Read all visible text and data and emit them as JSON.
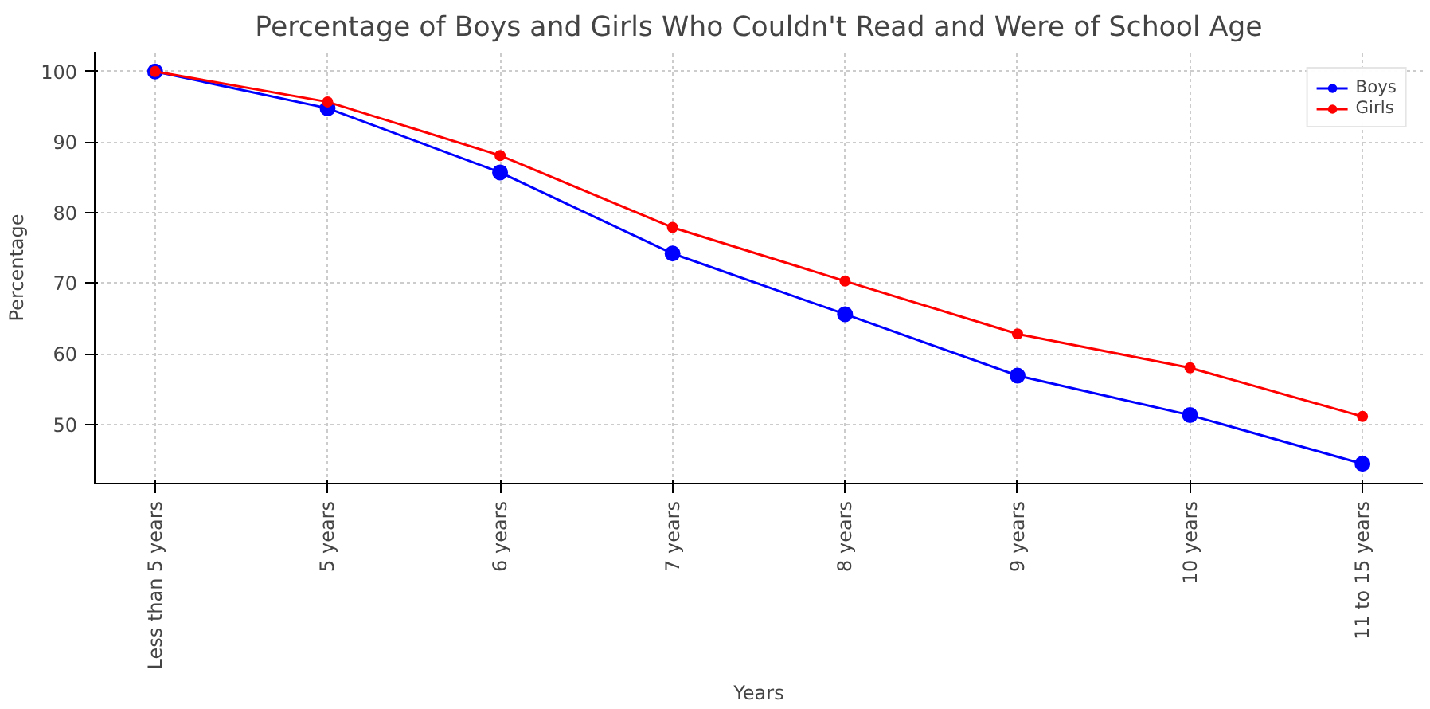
{
  "chart_data": {
    "type": "line",
    "title": "Percentage of Boys and Girls Who Couldn't Read and Were of School Age",
    "xlabel": "Years",
    "ylabel": "Percentage",
    "categories": [
      "Less than 5 years",
      "5 years",
      "6 years",
      "7 years",
      "8 years",
      "9 years",
      "10 years",
      "11 to 15 years"
    ],
    "series": [
      {
        "name": "Boys",
        "color": "#0000ff",
        "values": [
          100,
          94.8,
          85.7,
          74.2,
          65.6,
          56.9,
          51.3,
          44.4
        ]
      },
      {
        "name": "Girls",
        "color": "#ff0000",
        "values": [
          100,
          95.7,
          88.1,
          77.9,
          70.3,
          62.8,
          58,
          51.1
        ]
      }
    ],
    "ylim": [
      41.6,
      102.8
    ],
    "yticks": [
      50,
      60,
      70,
      80,
      90,
      100
    ],
    "grid": true,
    "legend": "top right",
    "marker": "circle",
    "line_style": "solid"
  }
}
